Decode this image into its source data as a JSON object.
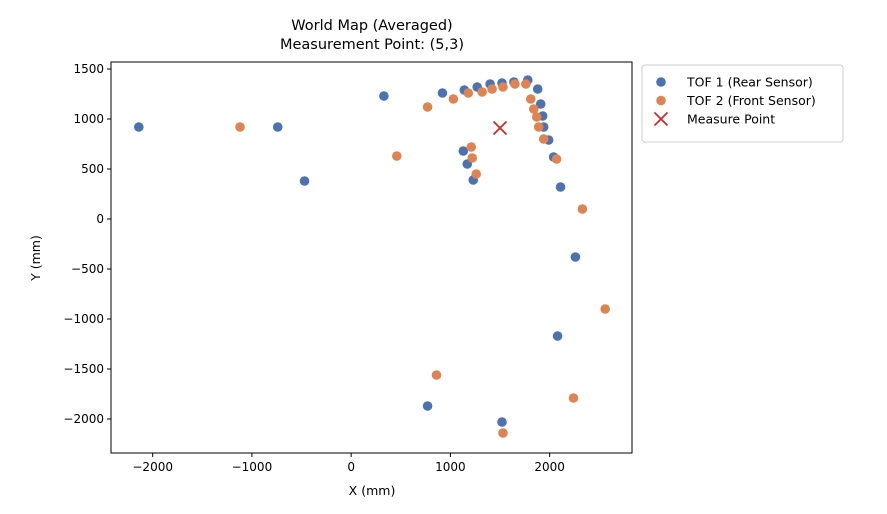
{
  "chart_data": {
    "type": "scatter",
    "title": "World Map (Averaged)",
    "subtitle": "Measurement Point: (5,3)",
    "xlabel": "X (mm)",
    "ylabel": "Y (mm)",
    "xlim": [
      -2420,
      2830
    ],
    "ylim": [
      -2340,
      1570
    ],
    "x_ticks": [
      -2000,
      -1000,
      0,
      1000,
      2000
    ],
    "y_ticks": [
      1500,
      1000,
      500,
      0,
      -500,
      -1000,
      -1500,
      -2000
    ],
    "x_tick_labels": [
      "−2000",
      "−1000",
      "0",
      "1000",
      "2000"
    ],
    "y_tick_labels": [
      "1500",
      "1000",
      "500",
      "0",
      "−500",
      "−1000",
      "−1500",
      "−2000"
    ],
    "grid": false,
    "legend_position": "outside-top-right",
    "series": [
      {
        "name": "TOF 1 (Rear Sensor)",
        "marker": "circle",
        "color": "#4C72B0",
        "points": [
          [
            -2140,
            920
          ],
          [
            -740,
            920
          ],
          [
            -470,
            380
          ],
          [
            330,
            1230
          ],
          [
            920,
            1260
          ],
          [
            1140,
            1290
          ],
          [
            1270,
            1320
          ],
          [
            1400,
            1350
          ],
          [
            1520,
            1360
          ],
          [
            1640,
            1370
          ],
          [
            1780,
            1390
          ],
          [
            1880,
            1300
          ],
          [
            1910,
            1150
          ],
          [
            1930,
            1030
          ],
          [
            1940,
            920
          ],
          [
            1990,
            790
          ],
          [
            2040,
            620
          ],
          [
            2110,
            320
          ],
          [
            2260,
            -380
          ],
          [
            2080,
            -1170
          ],
          [
            1130,
            680
          ],
          [
            1170,
            550
          ],
          [
            1230,
            390
          ],
          [
            770,
            -1870
          ],
          [
            1520,
            -2030
          ]
        ]
      },
      {
        "name": "TOF 2 (Front Sensor)",
        "marker": "circle",
        "color": "#DD8452",
        "points": [
          [
            -1120,
            920
          ],
          [
            460,
            630
          ],
          [
            770,
            1120
          ],
          [
            1030,
            1200
          ],
          [
            1180,
            1260
          ],
          [
            1320,
            1270
          ],
          [
            1420,
            1300
          ],
          [
            1530,
            1320
          ],
          [
            1650,
            1350
          ],
          [
            1760,
            1350
          ],
          [
            1810,
            1200
          ],
          [
            1840,
            1100
          ],
          [
            1870,
            1020
          ],
          [
            1890,
            920
          ],
          [
            1940,
            800
          ],
          [
            2070,
            600
          ],
          [
            2330,
            100
          ],
          [
            2560,
            -900
          ],
          [
            2240,
            -1790
          ],
          [
            1210,
            720
          ],
          [
            1220,
            610
          ],
          [
            1260,
            450
          ],
          [
            860,
            -1560
          ],
          [
            1530,
            -2140
          ]
        ]
      },
      {
        "name": "Measure Point",
        "marker": "x",
        "color": "#D62728",
        "points": [
          [
            1500,
            910
          ]
        ]
      }
    ]
  }
}
